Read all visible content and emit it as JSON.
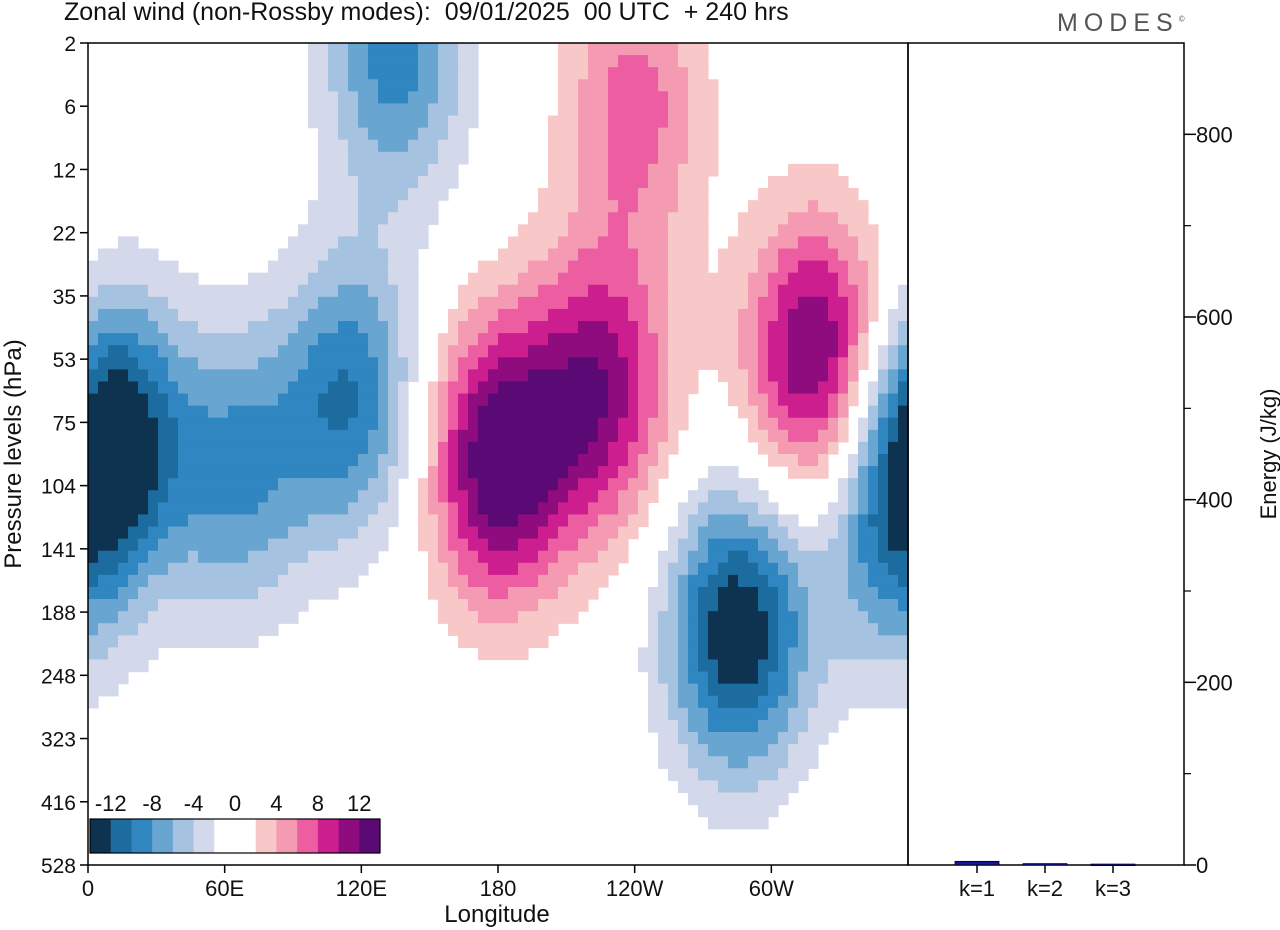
{
  "title": "Zonal wind (non-Rossby modes):  09/01/2025  00 UTC  + 240 hrs",
  "logo": "MODES",
  "colors": {
    "levels": [
      "#0e3350",
      "#1c6ca0",
      "#2f86c0",
      "#69a5d1",
      "#a5c2e1",
      "#d3d8ea",
      "#ffffff",
      "#ffffff",
      "#f8c8c8",
      "#f59ab3",
      "#ec5da1",
      "#cc1e8e",
      "#8f0c7f",
      "#5b0a75"
    ],
    "bar": "#1515a0"
  },
  "chart_data": [
    {
      "type": "heatmap",
      "title": "Zonal wind (non-Rossby modes):  09/01/2025  00 UTC  + 240 hrs",
      "xlabel": "Longitude",
      "ylabel": "Pressure levels (hPa)",
      "x_ticks": [
        "0",
        "60E",
        "120E",
        "180",
        "120W",
        "60W"
      ],
      "x_tick_values": [
        0,
        60,
        120,
        180,
        240,
        300
      ],
      "xlim": [
        0,
        360
      ],
      "y_ticks": [
        "2",
        "6",
        "12",
        "22",
        "35",
        "53",
        "75",
        "104",
        "141",
        "188",
        "248",
        "323",
        "416",
        "528"
      ],
      "colorbar": {
        "tick_labels": [
          "-12",
          "-8",
          "-4",
          "0",
          "4",
          "8",
          "12"
        ],
        "levels": [
          -14,
          -12,
          -10,
          -8,
          -6,
          -4,
          -2,
          0,
          2,
          4,
          6,
          8,
          10,
          12,
          14
        ]
      },
      "features": [
        {
          "sign": "negative",
          "level_index": 6.2,
          "lon": 10,
          "peak": -14
        },
        {
          "sign": "negative",
          "level_index": 6.8,
          "lon": 65,
          "peak": -8
        },
        {
          "sign": "negative",
          "level_index": 0.2,
          "lon": 135,
          "peak": -9
        },
        {
          "sign": "negative",
          "level_index": 5.6,
          "lon": 115,
          "peak": -10
        },
        {
          "sign": "negative",
          "level_index": 9.3,
          "lon": 285,
          "peak": -14
        },
        {
          "sign": "negative",
          "level_index": 7.8,
          "lon": 350,
          "peak": -7
        },
        {
          "sign": "positive",
          "level_index": 6.6,
          "lon": 180,
          "peak": 14
        },
        {
          "sign": "positive",
          "level_index": 5.5,
          "lon": 225,
          "peak": 11
        },
        {
          "sign": "positive",
          "level_index": 5.0,
          "lon": 320,
          "peak": 13
        },
        {
          "sign": "positive",
          "level_index": 1.0,
          "lon": 240,
          "peak": 7
        }
      ]
    },
    {
      "type": "bar",
      "categories": [
        "k=1",
        "k=2",
        "k=3"
      ],
      "values": [
        4,
        1.5,
        1
      ],
      "ylabel": "Energy (J/kg)",
      "ylim": [
        0,
        900
      ],
      "y_ticks": [
        "0",
        "200",
        "400",
        "600",
        "800"
      ],
      "y_tick_values": [
        0,
        200,
        400,
        600,
        800
      ]
    }
  ]
}
